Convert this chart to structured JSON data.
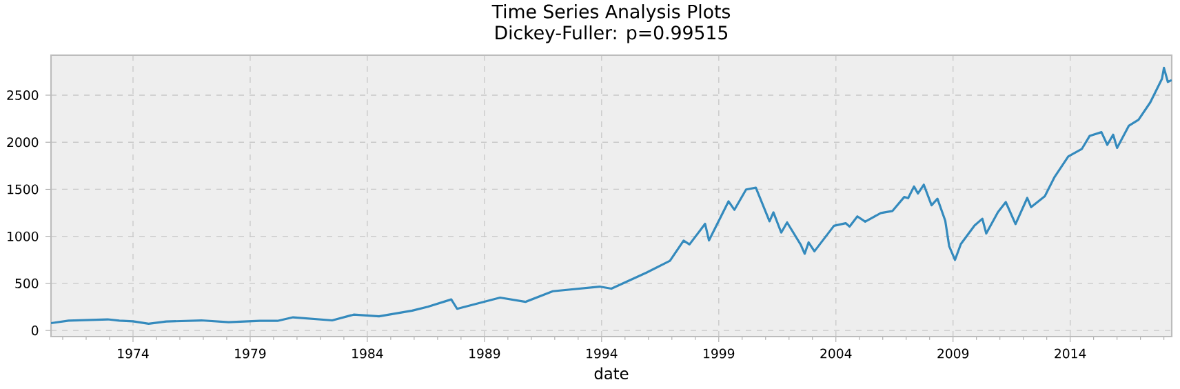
{
  "chart_data": {
    "type": "line",
    "title": "Time Series Analysis Plots",
    "subtitle": "Dickey-Fuller: p=0.99515",
    "xlabel": "date",
    "x": [
      "1970-07",
      "1971-04",
      "1972-12",
      "1973-06",
      "1974-01",
      "1974-09",
      "1975-06",
      "1976-12",
      "1978-02",
      "1979-06",
      "1980-03",
      "1980-11",
      "1982-07",
      "1983-06",
      "1984-07",
      "1985-12",
      "1986-08",
      "1987-08",
      "1987-11",
      "1989-09",
      "1990-10",
      "1991-12",
      "1993-12",
      "1994-06",
      "1995-12",
      "1996-12",
      "1997-07",
      "1997-10",
      "1998-06",
      "1998-08",
      "1999-06",
      "1999-09",
      "2000-03",
      "2000-08",
      "2001-03",
      "2001-05",
      "2001-09",
      "2001-12",
      "2002-07",
      "2002-09",
      "2002-11",
      "2003-02",
      "2003-12",
      "2004-06",
      "2004-08",
      "2004-12",
      "2005-04",
      "2005-12",
      "2006-06",
      "2006-12",
      "2007-02",
      "2007-05",
      "2007-07",
      "2007-10",
      "2008-02",
      "2008-05",
      "2008-09",
      "2008-11",
      "2009-02",
      "2009-05",
      "2009-12",
      "2010-04",
      "2010-06",
      "2010-12",
      "2011-04",
      "2011-09",
      "2012-03",
      "2012-05",
      "2012-12",
      "2013-05",
      "2013-12",
      "2014-07",
      "2014-11",
      "2015-05",
      "2015-08",
      "2015-11",
      "2016-01",
      "2016-07",
      "2016-12",
      "2017-06",
      "2017-12",
      "2018-01",
      "2018-03",
      "2018-05"
    ],
    "series": [
      {
        "color": "#348abd",
        "values": [
          78,
          104,
          118,
          104,
          97,
          72,
          95,
          107,
          88,
          102,
          102,
          140,
          107,
          168,
          150,
          211,
          252,
          330,
          230,
          349,
          304,
          417,
          466,
          444,
          615,
          740,
          954,
          914,
          1133,
          957,
          1372,
          1282,
          1498,
          1517,
          1160,
          1255,
          1040,
          1148,
          911,
          815,
          936,
          841,
          1112,
          1140,
          1104,
          1212,
          1156,
          1248,
          1270,
          1418,
          1406,
          1530,
          1455,
          1549,
          1330,
          1400,
          1166,
          896,
          750,
          919,
          1115,
          1187,
          1030,
          1258,
          1364,
          1131,
          1408,
          1310,
          1426,
          1631,
          1848,
          1930,
          2068,
          2107,
          1972,
          2080,
          1940,
          2174,
          2239,
          2423,
          2674,
          2790,
          2641,
          2660
        ]
      }
    ],
    "xlim": [
      "1970-07",
      "2018-05"
    ],
    "xticks": [
      {
        "value": "1971",
        "label": null
      },
      {
        "value": "1972",
        "label": null
      },
      {
        "value": "1973",
        "label": null
      },
      "1974",
      {
        "value": "1975",
        "label": null
      },
      {
        "value": "1976",
        "label": null
      },
      {
        "value": "1977",
        "label": null
      },
      {
        "value": "1978",
        "label": null
      },
      "1979",
      {
        "value": "1980",
        "label": null
      },
      {
        "value": "1981",
        "label": null
      },
      {
        "value": "1982",
        "label": null
      },
      {
        "value": "1983",
        "label": null
      },
      "1984",
      {
        "value": "1985",
        "label": null
      },
      {
        "value": "1986",
        "label": null
      },
      {
        "value": "1987",
        "label": null
      },
      {
        "value": "1988",
        "label": null
      },
      "1989",
      {
        "value": "1990",
        "label": null
      },
      {
        "value": "1991",
        "label": null
      },
      {
        "value": "1992",
        "label": null
      },
      {
        "value": "1993",
        "label": null
      },
      "1994",
      {
        "value": "1995",
        "label": null
      },
      {
        "value": "1996",
        "label": null
      },
      {
        "value": "1997",
        "label": null
      },
      {
        "value": "1998",
        "label": null
      },
      "1999",
      {
        "value": "2000",
        "label": null
      },
      {
        "value": "2001",
        "label": null
      },
      {
        "value": "2002",
        "label": null
      },
      {
        "value": "2003",
        "label": null
      },
      "2004",
      {
        "value": "2005",
        "label": null
      },
      {
        "value": "2006",
        "label": null
      },
      {
        "value": "2007",
        "label": null
      },
      {
        "value": "2008",
        "label": null
      },
      "2009",
      {
        "value": "2010",
        "label": null
      },
      {
        "value": "2011",
        "label": null
      },
      {
        "value": "2012",
        "label": null
      },
      {
        "value": "2013",
        "label": null
      },
      "2014",
      {
        "value": "2015",
        "label": null
      },
      {
        "value": "2016",
        "label": null
      },
      {
        "value": "2017",
        "label": null
      },
      {
        "value": "2018",
        "label": null
      }
    ],
    "ylim": [
      -65,
      2925
    ],
    "yticks": [
      0,
      500,
      1000,
      1500,
      2000,
      2500
    ],
    "grid": true,
    "marker": "none",
    "line_style": "solid"
  }
}
